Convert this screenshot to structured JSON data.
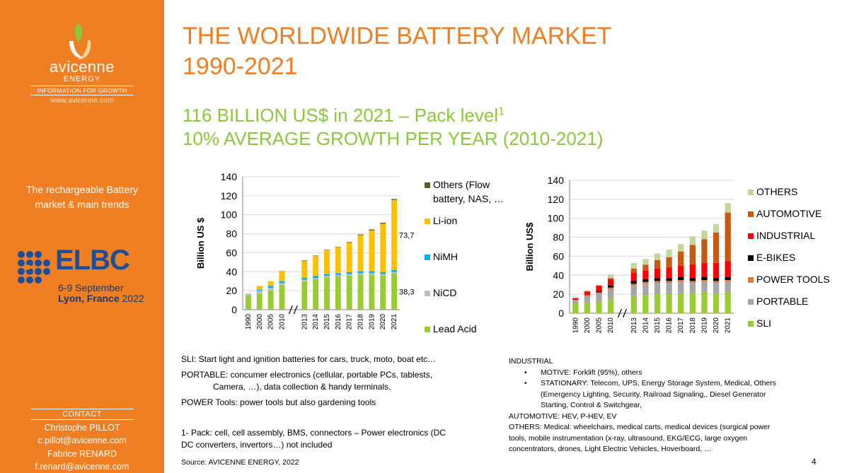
{
  "sidebar": {
    "logo_name": "avicenne",
    "logo_sub": "ENERGY",
    "logo_tagline": "INFORMATION FOR GROWTH",
    "logo_url": "www.avicenne.com",
    "title_line1": "The rechargeable Battery",
    "title_line2": "market & main trends",
    "event": {
      "name": "ELBC",
      "dates": "6-9 September",
      "city": "Lyon, France",
      "year": " 2022"
    },
    "contact": {
      "label": "CONTACT",
      "person1_name": "Christophe PILLOT",
      "person1_email": "c.pillot@avicenne.com",
      "person2_name": "Fabrice RENARD",
      "person2_email": "f.renard@avicenne.com"
    }
  },
  "header": {
    "title_line1": "THE WORLDWIDE BATTERY MARKET",
    "title_line2": "1990-2021",
    "subtitle_line1": "116 BILLION US$ in 2021 – Pack level",
    "subtitle_sup": "1",
    "subtitle_line2": "10% AVERAGE GROWTH PER YEAR (2010-2021)"
  },
  "colors": {
    "orange": "#f07f23",
    "green": "#8dc63f",
    "elbc_blue": "#1b4f9b"
  },
  "chart_data": [
    {
      "type": "bar",
      "stacked": true,
      "title": "",
      "xlabel": "",
      "ylabel": "Billion US $",
      "ylim": [
        0,
        140
      ],
      "yticks": [
        0,
        20,
        40,
        60,
        80,
        100,
        120,
        140
      ],
      "categories": [
        "1990",
        "2000",
        "2005",
        "2010",
        "2013",
        "2014",
        "2015",
        "2016",
        "2017",
        "2018",
        "2019",
        "2020",
        "2021"
      ],
      "axis_break_after": "2010",
      "legend_position": "right",
      "series": [
        {
          "name": "Lead Acid",
          "color": "#99cc33",
          "values": [
            15,
            17,
            20,
            26,
            30,
            32,
            34,
            35,
            36,
            37,
            37,
            36,
            38.3
          ]
        },
        {
          "name": "NiCD",
          "color": "#bfbfbf",
          "values": [
            2,
            3,
            3,
            2,
            1.5,
            1.5,
            1.5,
            1.5,
            1.5,
            1.5,
            1.5,
            1.5,
            1.5
          ]
        },
        {
          "name": "NiMH",
          "color": "#00b0f0",
          "values": [
            0,
            1,
            2,
            2,
            2,
            2,
            2,
            2,
            2,
            2,
            2,
            2,
            2
          ]
        },
        {
          "name": "Li-ion",
          "color": "#ffc000",
          "values": [
            0,
            4,
            5,
            11,
            18,
            21,
            25,
            27,
            31,
            38,
            43,
            51,
            73.7
          ]
        },
        {
          "name": "Others (Flow battery, NAS, …)",
          "color": "#4f6228",
          "values": [
            0,
            0,
            0,
            0,
            0.5,
            0.5,
            0.5,
            0.5,
            0.7,
            0.8,
            1,
            1,
            1
          ]
        }
      ],
      "legend_lines": [
        [
          "Others (Flow",
          "battery, NAS, …)"
        ],
        [
          "Li-ion"
        ],
        [
          "NiMH"
        ],
        [
          "NiCD"
        ],
        [
          "Lead Acid"
        ]
      ],
      "data_labels": [
        {
          "series": "Li-ion",
          "category": "2021",
          "text": "73,7"
        },
        {
          "series": "Lead Acid",
          "category": "2021",
          "text": "38,3"
        }
      ]
    },
    {
      "type": "bar",
      "stacked": true,
      "title": "",
      "xlabel": "",
      "ylabel": "Billion US$",
      "ylim": [
        0,
        140
      ],
      "yticks": [
        0,
        20,
        40,
        60,
        80,
        100,
        120,
        140
      ],
      "categories": [
        "1990",
        "2000",
        "2005",
        "2010",
        "2013",
        "2014",
        "2015",
        "2016",
        "2017",
        "2018",
        "2019",
        "2020",
        "2021"
      ],
      "axis_break_after": "2010",
      "legend_position": "right",
      "series": [
        {
          "name": "SLI",
          "color": "#99cc33",
          "values": [
            10,
            11,
            12,
            15,
            18,
            19,
            20,
            20,
            21,
            21,
            22,
            21,
            22
          ]
        },
        {
          "name": "PORTABLE",
          "color": "#a6a6a6",
          "values": [
            4,
            7,
            9,
            10,
            11,
            12,
            12,
            12,
            12,
            11,
            11,
            11,
            11
          ]
        },
        {
          "name": "POWER TOOLS",
          "color": "#e07b39",
          "values": [
            0,
            1,
            1,
            2,
            2,
            2,
            2,
            2,
            2,
            2,
            2,
            2,
            2
          ]
        },
        {
          "name": "E-BIKES",
          "color": "#000000",
          "values": [
            0,
            0,
            1,
            2,
            3,
            3,
            3,
            3,
            3,
            3,
            3,
            3,
            3
          ]
        },
        {
          "name": "INDUSTRIAL",
          "color": "#ff0000",
          "values": [
            2,
            4,
            6,
            7,
            9,
            9,
            10,
            11,
            12,
            14,
            15,
            16,
            17
          ]
        },
        {
          "name": "AUTOMOTIVE",
          "color": "#c55a11",
          "values": [
            0,
            0,
            0,
            1,
            4,
            6,
            9,
            11,
            15,
            21,
            25,
            32,
            51
          ]
        },
        {
          "name": "OTHERS",
          "color": "#c3d69b",
          "values": [
            0,
            1,
            1,
            4,
            6,
            6,
            7,
            8,
            8,
            9,
            9,
            9,
            10
          ]
        }
      ],
      "legend_lines": [
        [
          "OTHERS"
        ],
        [
          "AUTOMOTIVE"
        ],
        [
          "INDUSTRIAL"
        ],
        [
          "E-BIKES"
        ],
        [
          "POWER TOOLS"
        ],
        [
          "PORTABLE"
        ],
        [
          "SLI"
        ]
      ]
    }
  ],
  "notes_left": {
    "sli": "SLI: Start light and ignition batteries for cars, truck, moto, boat etc…",
    "portable_1": "PORTABLE: concumer electronics (cellular, portable PCs, tablests,",
    "portable_2": "Camera, …), data collection & handy terminals,",
    "power_tools": "POWER Tools: power tools but also gardening tools",
    "footnote_1": "1- Pack: cell, cell assembly, BMS, connectors – Power electronics (DC",
    "footnote_2": "DC converters, invertors…) not included",
    "source": "Source: AVICENNE ENERGY, 2022"
  },
  "notes_right": {
    "industrial_head": "INDUSTRIAL",
    "motive": "MOTIVE: Forklift (95%), others",
    "stationary_1": "STATIONARY: Telecom, UPS, Energy Storage System, Medical, Others",
    "stationary_2": "(Emergency Lighting, Security, Railroad Signaling,, Diesel Generator",
    "stationary_3": "Starting, Control & Switchgear,",
    "automotive": "AUTOMOTIVE: HEV, P-HEV, EV",
    "others_1": "OTHERS: Medical: wheelchairs, medical carts, medical devices (surgical power",
    "others_2": "tools, mobile instrumentation (x-ray, ultrasound, EKG/ECG, large oxygen",
    "others_3": "concentrators, drones, Light Electric Vehicles, Hoverboard, …"
  },
  "page_number": "4"
}
